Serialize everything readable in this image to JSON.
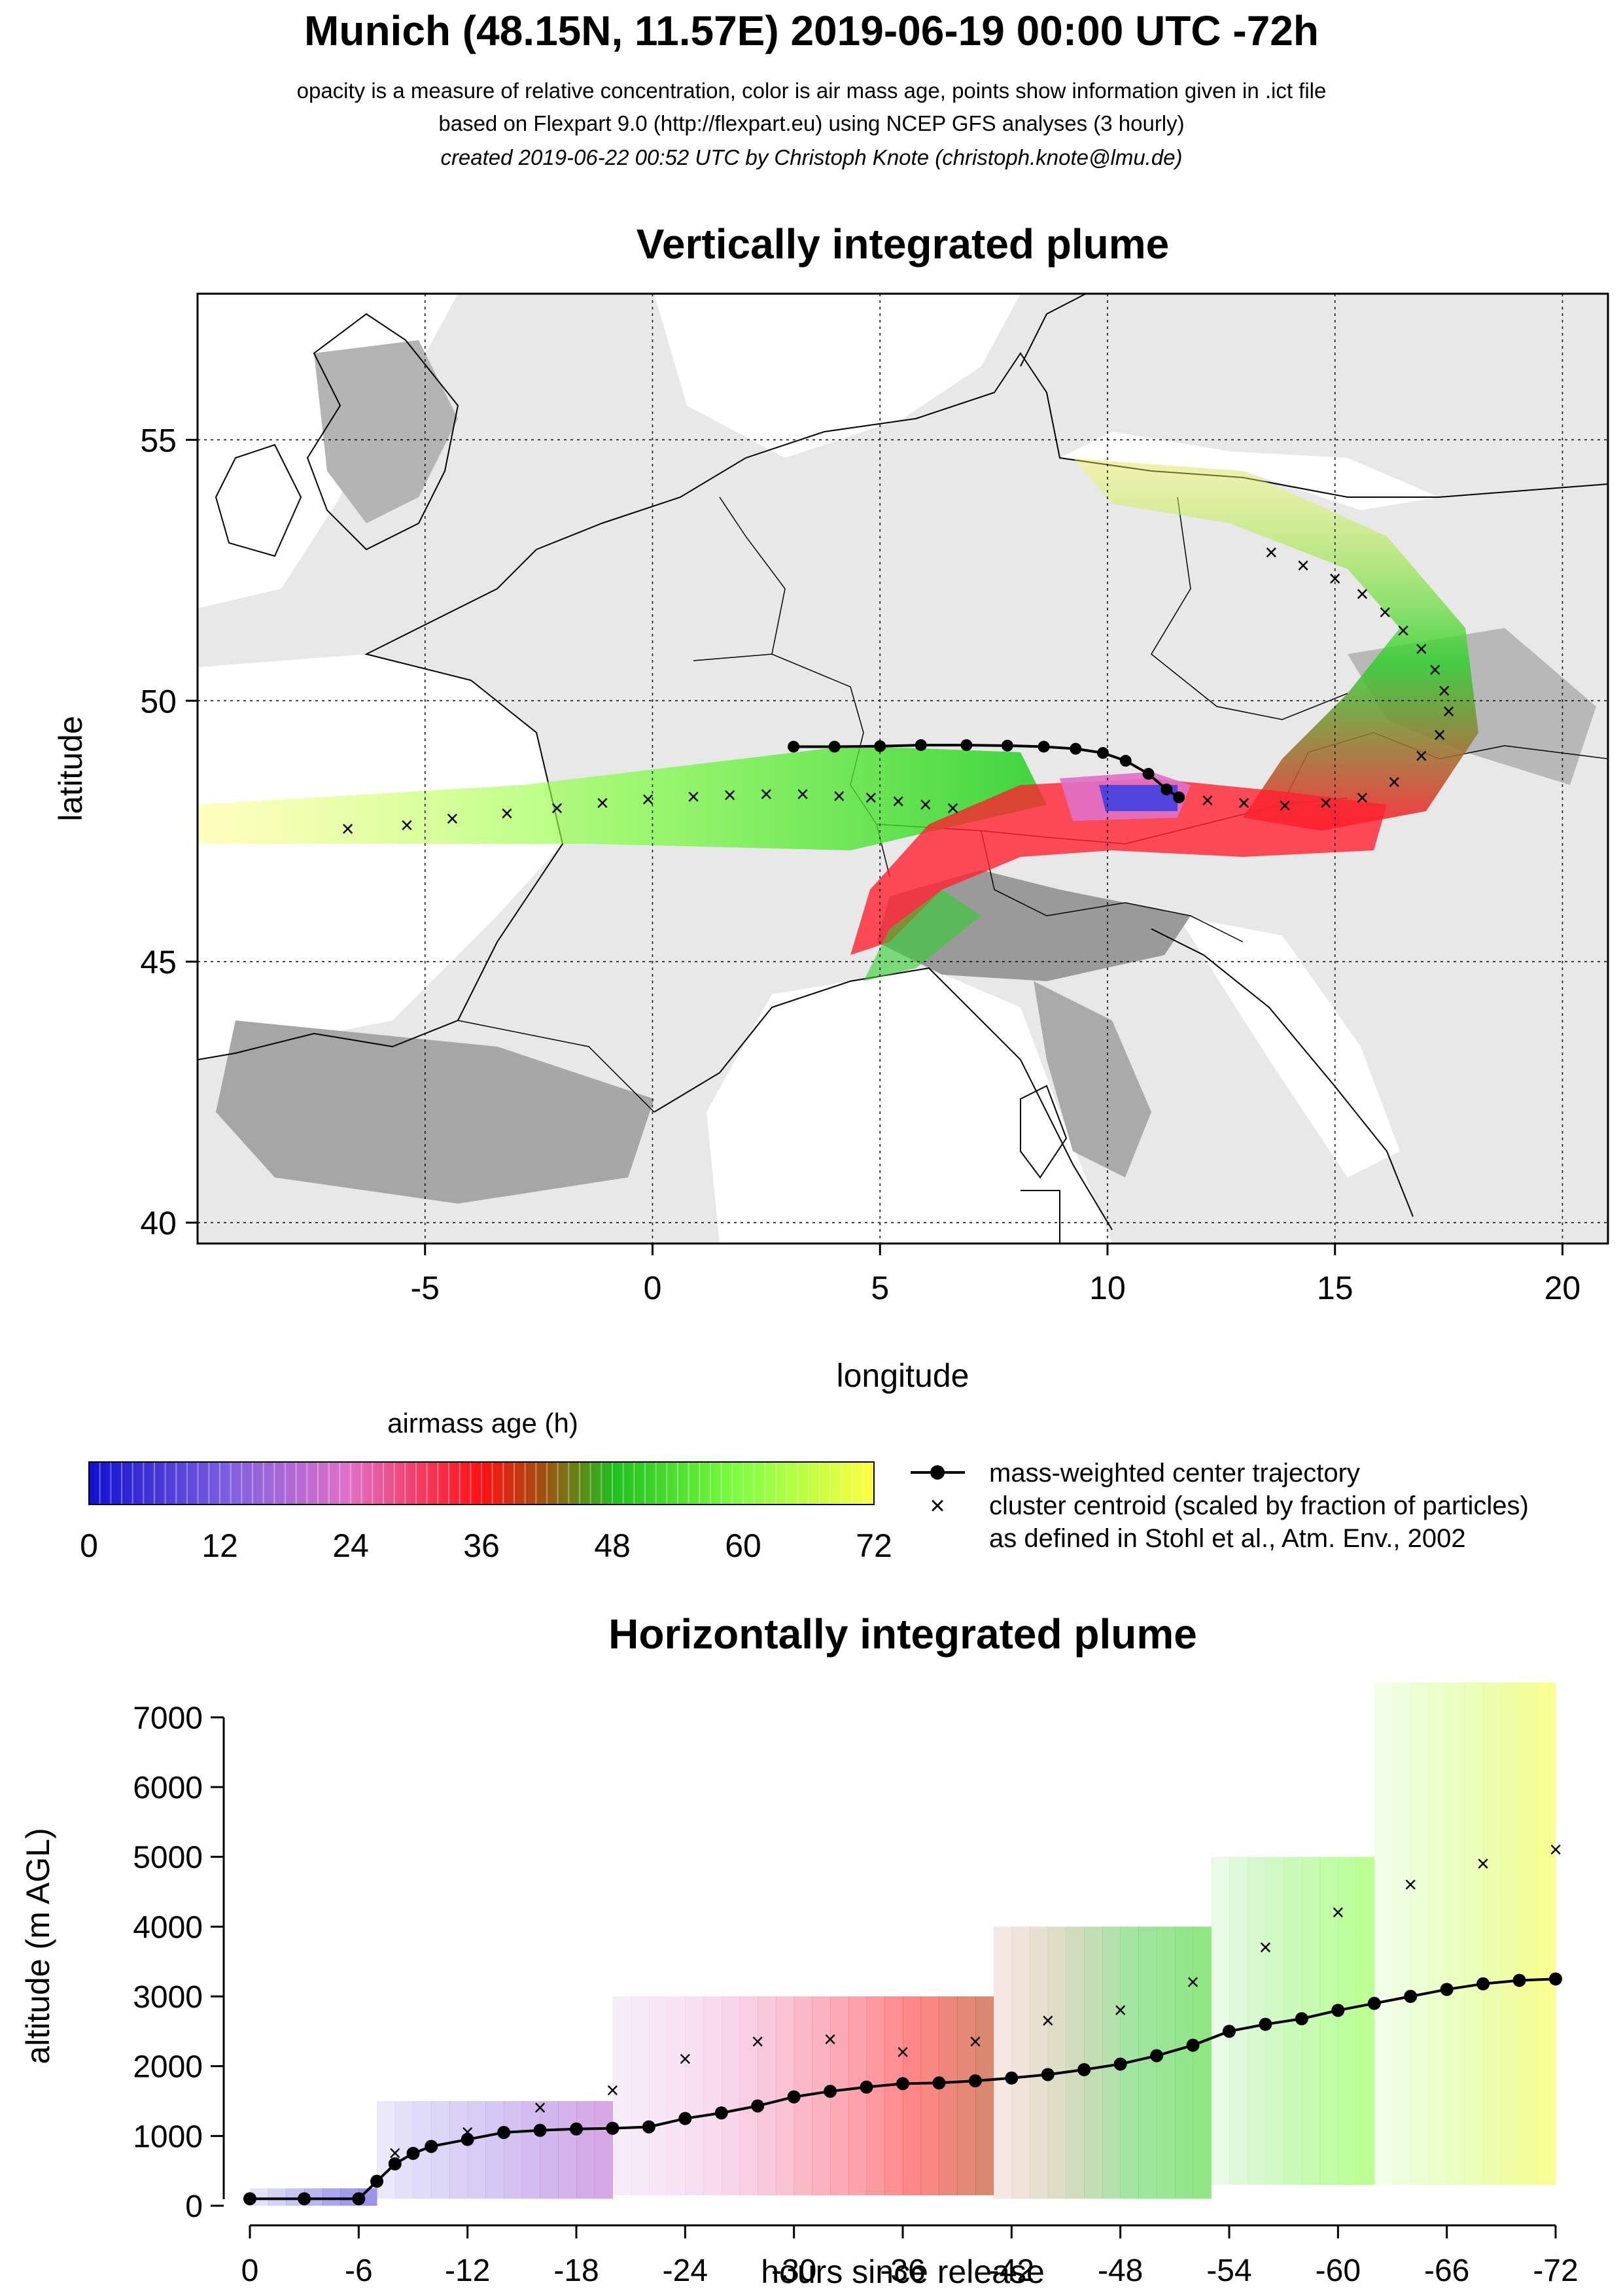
{
  "header": {
    "title": "Munich (48.15N, 11.57E) 2019-06-19 00:00 UTC -72h",
    "line1": "opacity is a measure of relative concentration, color is air mass age, points show information given in .ict file",
    "line2": "based on Flexpart 9.0 (http://flexpart.eu) using NCEP GFS analyses (3 hourly)",
    "line3": "created 2019-06-22 00:52 UTC by Christoph Knote (christoph.knote@lmu.de)"
  },
  "legend": {
    "colorbar_title": "airmass age (h)",
    "colorbar_ticks": [
      "0",
      "12",
      "24",
      "36",
      "48",
      "60",
      "72"
    ],
    "trajectory": "mass-weighted center trajectory",
    "centroid": "cluster centroid (scaled by fraction of particles)",
    "centroid_ref": "as defined in Stohl et al., Atm. Env., 2002"
  },
  "colors": {
    "age_0": "#1010d0",
    "age_24": "#e070c8",
    "age_36": "#ff1010",
    "age_48": "#20c020",
    "age_72": "#ffff40",
    "trajectory": "#000000"
  },
  "chart_data": [
    {
      "type": "scatter",
      "title": "Vertically integrated plume",
      "xlabel": "longitude",
      "ylabel": "latitude",
      "xlim": [
        -10,
        21
      ],
      "ylim": [
        39.6,
        57.8
      ],
      "xticks": [
        "-5",
        "0",
        "5",
        "10",
        "15",
        "20"
      ],
      "xtick_values": [
        -5,
        0,
        5,
        10,
        15,
        20
      ],
      "yticks": [
        "40",
        "45",
        "50",
        "55"
      ],
      "ytick_values": [
        40,
        45,
        50,
        55
      ],
      "grid": true,
      "series": [
        {
          "name": "mass-weighted center trajectory",
          "x": [
            11.57,
            11.3,
            10.9,
            10.4,
            9.9,
            9.3,
            8.6,
            7.8,
            6.9,
            5.9,
            5.0,
            4.0,
            3.1
          ],
          "y": [
            48.15,
            48.3,
            48.6,
            48.85,
            49.0,
            49.08,
            49.12,
            49.14,
            49.15,
            49.15,
            49.13,
            49.12,
            49.12
          ]
        },
        {
          "name": "cluster centroid (scaled by fraction of particles)",
          "x": [
            -6.7,
            -5.4,
            -4.4,
            -3.2,
            -2.1,
            -1.1,
            -0.1,
            0.9,
            1.7,
            2.5,
            3.3,
            4.1,
            4.8,
            5.4,
            6.0,
            6.6,
            13.6,
            14.3,
            15.0,
            15.6,
            16.1,
            16.5,
            16.9,
            17.2,
            17.4,
            17.5,
            17.3,
            16.9,
            16.3,
            15.6,
            14.8,
            13.9,
            13.0,
            12.2
          ],
          "y": [
            47.55,
            47.62,
            47.75,
            47.85,
            47.95,
            48.05,
            48.12,
            48.17,
            48.2,
            48.22,
            48.22,
            48.18,
            48.15,
            48.08,
            48.02,
            47.95,
            52.85,
            52.6,
            52.35,
            52.05,
            51.7,
            51.35,
            51.0,
            50.6,
            50.2,
            49.8,
            49.35,
            48.95,
            48.45,
            48.15,
            48.05,
            48.0,
            48.05,
            48.1
          ]
        }
      ]
    },
    {
      "type": "line",
      "title": "Horizontally integrated plume",
      "xlabel": "hours since release",
      "ylabel": "altitude (m AGL)",
      "xlim": [
        0,
        -72
      ],
      "ylim": [
        0,
        7500
      ],
      "xticks": [
        "0",
        "-6",
        "-12",
        "-18",
        "-24",
        "-30",
        "-36",
        "-42",
        "-48",
        "-54",
        "-60",
        "-66",
        "-72"
      ],
      "xtick_values": [
        0,
        -6,
        -12,
        -18,
        -24,
        -30,
        -36,
        -42,
        -48,
        -54,
        -60,
        -66,
        -72
      ],
      "yticks": [
        "0",
        "1000",
        "2000",
        "3000",
        "4000",
        "5000",
        "6000",
        "7000"
      ],
      "ytick_values": [
        0,
        1000,
        2000,
        3000,
        4000,
        5000,
        6000,
        7000
      ],
      "series": [
        {
          "name": "mass-weighted center trajectory",
          "x": [
            0,
            -3,
            -6,
            -7,
            -8,
            -9,
            -10,
            -12,
            -14,
            -16,
            -18,
            -20,
            -22,
            -24,
            -26,
            -28,
            -30,
            -32,
            -34,
            -36,
            -38,
            -40,
            -42,
            -44,
            -46,
            -48,
            -50,
            -52,
            -54,
            -56,
            -58,
            -60,
            -62,
            -64,
            -66,
            -68,
            -70,
            -72
          ],
          "y": [
            100,
            100,
            100,
            350,
            600,
            750,
            850,
            950,
            1050,
            1080,
            1100,
            1110,
            1130,
            1250,
            1330,
            1430,
            1560,
            1640,
            1700,
            1750,
            1760,
            1790,
            1830,
            1880,
            1950,
            2030,
            2150,
            2300,
            2500,
            2600,
            2680,
            2800,
            2900,
            3000,
            3100,
            3180,
            3230,
            3250
          ]
        },
        {
          "name": "cluster centroid (upper)",
          "x": [
            -8,
            -12,
            -16,
            -20,
            -24,
            -28,
            -32,
            -36,
            -40,
            -44,
            -48,
            -52,
            -56,
            -60,
            -64,
            -68,
            -72
          ],
          "y": [
            750,
            1050,
            1400,
            1650,
            2100,
            2350,
            2380,
            2200,
            2350,
            2650,
            2800,
            3200,
            3700,
            4200,
            4600,
            4900,
            5100
          ]
        }
      ],
      "age_bands_hours": [
        [
          0,
          -7,
          0,
          250
        ],
        [
          -7,
          -20,
          100,
          1500
        ],
        [
          -20,
          -41,
          150,
          3000
        ],
        [
          -41,
          -53,
          100,
          4000
        ],
        [
          -53,
          -62,
          300,
          5000
        ],
        [
          -62,
          -72,
          300,
          7500
        ]
      ]
    }
  ]
}
